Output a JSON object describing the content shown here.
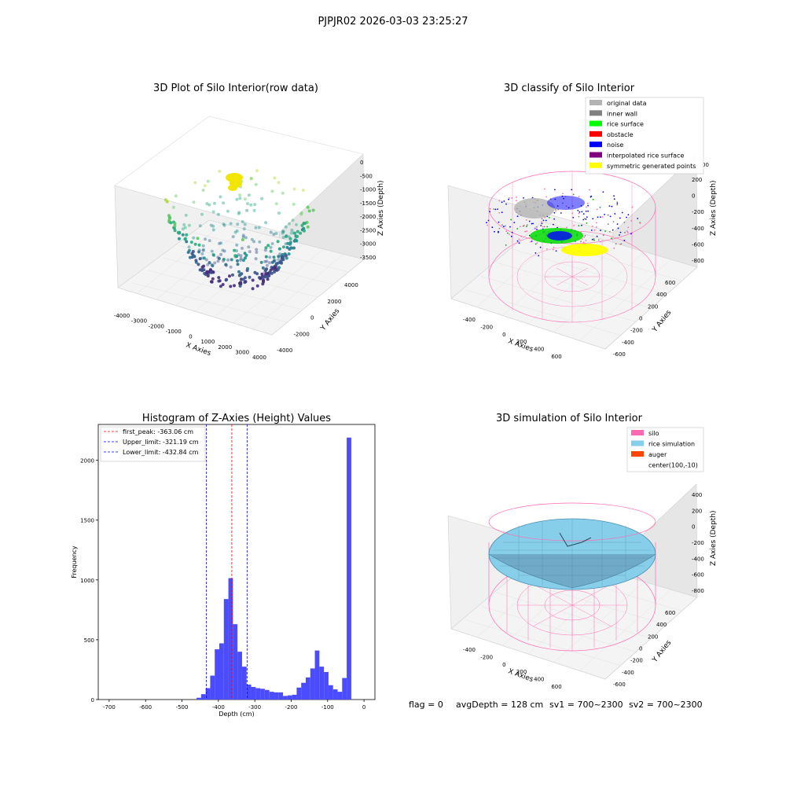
{
  "figure": {
    "suptitle": "PJPJR02 2026-03-03 23:25:27",
    "footer": {
      "flag": "flag = 0",
      "avg_depth": "avgDepth = 128 cm",
      "sv1": "sv1 = 700~2300",
      "sv2": "sv2 = 700~2300"
    }
  },
  "chart_data": [
    {
      "type": "scatter",
      "title": "3D Plot of Silo Interior(row data)",
      "xlabel": "X Axies",
      "ylabel": "Y Axies",
      "zlabel": "Z Axies (Depth)",
      "x_ticks": [
        "-4000",
        "-3000",
        "-2000",
        "-1000",
        "0",
        "1000",
        "2000",
        "3000",
        "4000"
      ],
      "y_ticks": [
        "-4000",
        "-2000",
        "0",
        "2000",
        "4000"
      ],
      "z_ticks": [
        "0",
        "-500",
        "-1000",
        "-1500",
        "-2000",
        "-2500",
        "-3000",
        "-3500"
      ],
      "colormap": "viridis",
      "highlight_color": "#f2e600"
    },
    {
      "type": "scatter",
      "title": "3D classify of Silo Interior",
      "xlabel": "X Axies",
      "ylabel": "Y Axies",
      "zlabel": "Z Axies (Depth)",
      "x_ticks": [
        "-400",
        "-200",
        "0",
        "200",
        "400",
        "600"
      ],
      "y_ticks": [
        "-600",
        "-400",
        "-200",
        "0",
        "200",
        "400",
        "600"
      ],
      "z_ticks": [
        "200",
        "0",
        "-200",
        "-400",
        "-600",
        "-800"
      ],
      "z_top_partial": "00",
      "legend": [
        {
          "label": "original data",
          "color": "#b3b3b3"
        },
        {
          "label": "inner wall",
          "color": "#808080"
        },
        {
          "label": "rice surface",
          "color": "#00ff00"
        },
        {
          "label": "obstacle",
          "color": "#ff0000"
        },
        {
          "label": "noise",
          "color": "#0000ff"
        },
        {
          "label": "interpolated rice surface",
          "color": "#800080"
        },
        {
          "label": "symmetric generated points",
          "color": "#ffff00"
        }
      ]
    },
    {
      "type": "bar",
      "title": "Histogram of Z-Axies (Height) Values",
      "xlabel": "Depth (cm)",
      "ylabel": "Frequency",
      "xlim": [
        -730,
        30
      ],
      "ylim": [
        0,
        2300
      ],
      "x_ticks": [
        -700,
        -600,
        -500,
        -400,
        -300,
        -200,
        -100,
        0
      ],
      "y_ticks": [
        0,
        500,
        1000,
        1500,
        2000
      ],
      "bar_color": "#4b4bff",
      "bin_start": -460,
      "bin_width": 12.5,
      "values": [
        15,
        45,
        95,
        200,
        420,
        470,
        840,
        1015,
        630,
        400,
        275,
        125,
        105,
        95,
        90,
        80,
        65,
        60,
        60,
        30,
        35,
        40,
        100,
        140,
        185,
        260,
        410,
        275,
        230,
        120,
        85,
        65,
        180,
        2190
      ],
      "lines": [
        {
          "label": "first_peak: -363.06 cm",
          "x": -363.06,
          "color": "#ff0000"
        },
        {
          "label": "Upper_limit: -321.19 cm",
          "x": -321.19,
          "color": "#0000ff"
        },
        {
          "label": "Lower_limit: -432.84 cm",
          "x": -432.84,
          "color": "#0000ff"
        }
      ]
    },
    {
      "type": "surface",
      "title": "3D simulation of Silo Interior",
      "xlabel": "X Axies",
      "ylabel": "Y Axies",
      "zlabel": "Z Axies (Depth)",
      "x_ticks": [
        "-400",
        "-200",
        "0",
        "200",
        "400",
        "600"
      ],
      "y_ticks": [
        "-600",
        "-400",
        "-200",
        "0",
        "200",
        "400",
        "600"
      ],
      "z_ticks": [
        "400",
        "200",
        "0",
        "-200",
        "-400",
        "-600",
        "-800"
      ],
      "legend": [
        {
          "label": "silo",
          "color": "#ff69b4"
        },
        {
          "label": "rice simulation",
          "color": "#87ceeb"
        },
        {
          "label": "auger",
          "color": "#ff4500"
        },
        {
          "label": "center(100,-10)",
          "color": "none"
        }
      ]
    }
  ]
}
